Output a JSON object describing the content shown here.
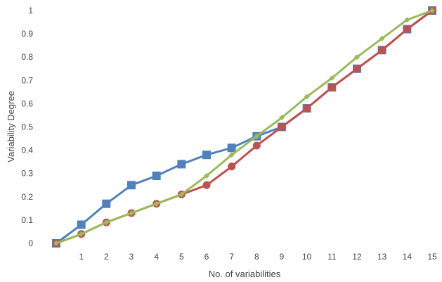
{
  "chart_data": {
    "type": "line",
    "title": "",
    "xlabel": "No. of variabilities",
    "ylabel": "Variability Degree",
    "x": [
      0,
      1,
      2,
      3,
      4,
      5,
      6,
      7,
      8,
      9,
      10,
      11,
      12,
      13,
      14,
      15
    ],
    "x_tick_labels": [
      "1",
      "2",
      "3",
      "4",
      "5",
      "6",
      "7",
      "8",
      "9",
      "10",
      "11",
      "12",
      "13",
      "14",
      "15"
    ],
    "y_tick_labels": [
      "0",
      "0.1",
      "0.2",
      "0.3",
      "0.4",
      "0.5",
      "0.6",
      "0.7",
      "0.8",
      "0.9",
      "1"
    ],
    "xlim": [
      0,
      15
    ],
    "ylim": [
      0,
      1
    ],
    "grid": false,
    "legend": "none",
    "series": [
      {
        "color": "#4f81bd",
        "marker": "square",
        "values": [
          0,
          0.08,
          0.17,
          0.25,
          0.29,
          0.34,
          0.38,
          0.41,
          0.46,
          0.5,
          0.58,
          0.67,
          0.75,
          0.83,
          0.92,
          1.0
        ]
      },
      {
        "color": "#c0504d",
        "marker": "circle",
        "values": [
          0,
          0.04,
          0.09,
          0.13,
          0.17,
          0.21,
          0.25,
          0.33,
          0.42,
          0.5,
          0.58,
          0.67,
          0.75,
          0.83,
          0.92,
          1.0
        ]
      },
      {
        "color": "#9bbb59",
        "marker": "diamond",
        "values": [
          0,
          0.04,
          0.09,
          0.13,
          0.17,
          0.21,
          0.29,
          0.38,
          0.46,
          0.54,
          0.63,
          0.71,
          0.8,
          0.88,
          0.96,
          1.0
        ]
      }
    ]
  }
}
